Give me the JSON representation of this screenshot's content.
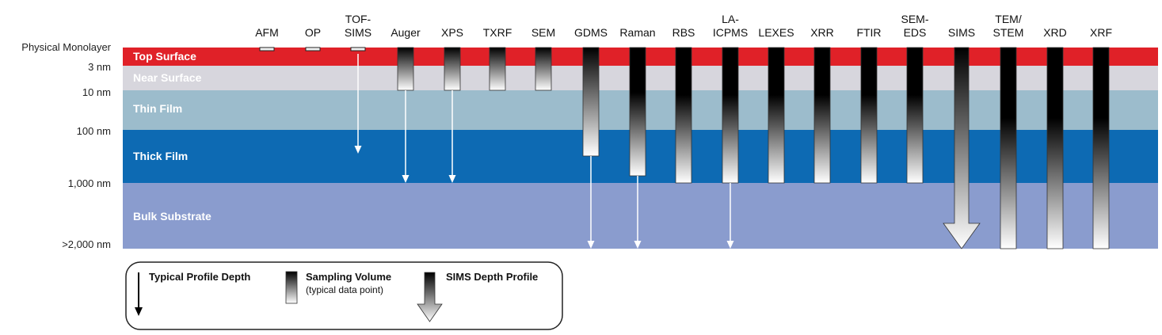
{
  "layers": [
    {
      "name": "Top Surface",
      "color": "#e02128",
      "depth_label": "Physical Monolayer"
    },
    {
      "name": "Near Surface",
      "color": "#d7d6dd",
      "depth_label": "3 nm"
    },
    {
      "name": "Thin Film",
      "color": "#9cbccc",
      "depth_label": "10 nm"
    },
    {
      "name": "Thick Film",
      "color": "#0d6ab3",
      "depth_label": "100 nm"
    },
    {
      "name": "Bulk Substrate",
      "color": "#8a9cce",
      "depth_label": "1,000 nm"
    }
  ],
  "bottom_depth_label": ">2,000 nm",
  "techniques": [
    {
      "name": "AFM",
      "sampling_to": "monolayer",
      "arrow_to": null
    },
    {
      "name": "OP",
      "sampling_to": "monolayer",
      "arrow_to": null
    },
    {
      "name": "TOF-\nSIMS",
      "sampling_to": "monolayer",
      "arrow_to": "100 nm"
    },
    {
      "name": "Auger",
      "sampling_to": "10 nm",
      "arrow_to": "1,000 nm"
    },
    {
      "name": "XPS",
      "sampling_to": "10 nm",
      "arrow_to": "1,000 nm"
    },
    {
      "name": "TXRF",
      "sampling_to": "10 nm",
      "arrow_to": null
    },
    {
      "name": "SEM",
      "sampling_to": "10 nm",
      "arrow_to": null
    },
    {
      "name": "GDMS",
      "sampling_to": "100 nm",
      "arrow_to": ">2,000 nm"
    },
    {
      "name": "Raman",
      "sampling_to": "1,000 nm",
      "arrow_to": ">2,000 nm"
    },
    {
      "name": "RBS",
      "sampling_to": "1,000 nm",
      "arrow_to": null
    },
    {
      "name": "LA-\nICPMS",
      "sampling_to": "1,000 nm",
      "arrow_to": ">2,000 nm"
    },
    {
      "name": "LEXES",
      "sampling_to": "1,000 nm",
      "arrow_to": null
    },
    {
      "name": "XRR",
      "sampling_to": "1,000 nm",
      "arrow_to": null
    },
    {
      "name": "FTIR",
      "sampling_to": "1,000 nm",
      "arrow_to": null
    },
    {
      "name": "SEM-\nEDS",
      "sampling_to": "1,000 nm",
      "arrow_to": null
    },
    {
      "name": "SIMS",
      "sampling_to": null,
      "arrow_to": ">2,000 nm",
      "depth_profile": true
    },
    {
      "name": "TEM/\nSTEM",
      "sampling_to": ">2,000 nm",
      "arrow_to": null
    },
    {
      "name": "XRD",
      "sampling_to": ">2,000 nm",
      "arrow_to": null
    },
    {
      "name": "XRF",
      "sampling_to": ">2,000 nm",
      "arrow_to": null
    }
  ],
  "legend": {
    "profile_depth": "Typical Profile Depth",
    "sampling_volume": "Sampling Volume",
    "sampling_volume_note": "(typical data point)",
    "sims_profile": "SIMS Depth Profile"
  }
}
